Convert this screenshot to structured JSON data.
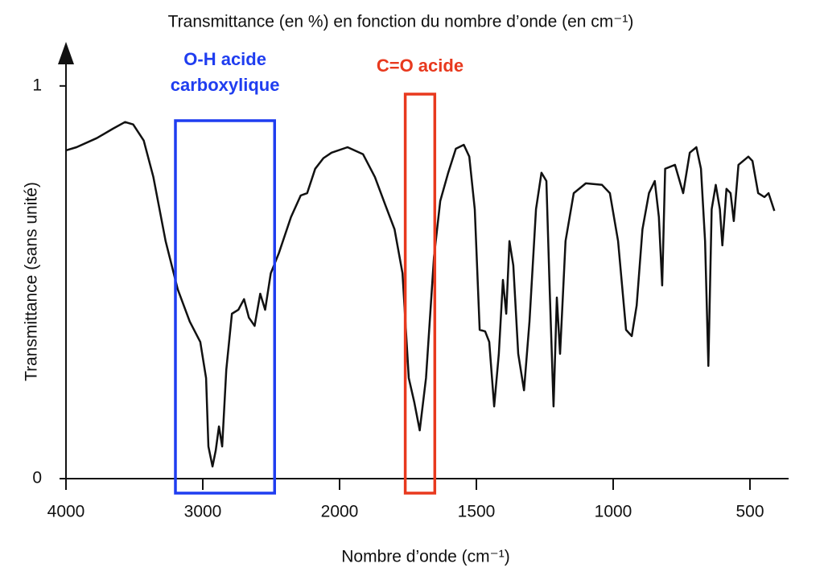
{
  "chart_data": {
    "type": "line",
    "title": "Transmittance (en %) en fonction du nombre d’onde (en cm⁻¹)",
    "x_label": "Nombre d’onde (cm⁻¹)",
    "y_label": "Transmittance (sans unité)",
    "color": "#111111",
    "xlim": [
      4000,
      400
    ],
    "xticks": [
      4000,
      3000,
      2000,
      1500,
      1000,
      500
    ],
    "ylim": [
      0,
      1.1
    ],
    "yticks": [
      0,
      1
    ],
    "x": [
      4000,
      3923,
      3775,
      3657,
      3568,
      3509,
      3432,
      3361,
      3272,
      3183,
      3095,
      3018,
      2976,
      2959,
      2929,
      2905,
      2882,
      2858,
      2828,
      2787,
      2740,
      2698,
      2663,
      2621,
      2580,
      2544,
      2503,
      2444,
      2355,
      2284,
      2237,
      2178,
      2118,
      2059,
      1971,
      1914,
      1871,
      1833,
      1799,
      1770,
      1747,
      1727,
      1707,
      1684,
      1655,
      1632,
      1603,
      1575,
      1546,
      1526,
      1506,
      1488,
      1468,
      1453,
      1435,
      1418,
      1403,
      1391,
      1379,
      1365,
      1347,
      1326,
      1306,
      1282,
      1262,
      1244,
      1232,
      1218,
      1206,
      1194,
      1174,
      1144,
      1100,
      1041,
      1012,
      982,
      953,
      932,
      914,
      893,
      869,
      848,
      833,
      821,
      810,
      774,
      744,
      720,
      696,
      679,
      664,
      652,
      640,
      625,
      610,
      601,
      586,
      571,
      559,
      542,
      506,
      491,
      470,
      447,
      432,
      411
    ],
    "values": [
      0.836,
      0.844,
      0.867,
      0.891,
      0.908,
      0.902,
      0.861,
      0.768,
      0.605,
      0.482,
      0.4,
      0.348,
      0.256,
      0.082,
      0.031,
      0.072,
      0.133,
      0.082,
      0.277,
      0.42,
      0.43,
      0.457,
      0.41,
      0.389,
      0.471,
      0.43,
      0.523,
      0.574,
      0.666,
      0.721,
      0.727,
      0.789,
      0.816,
      0.83,
      0.844,
      0.826,
      0.768,
      0.697,
      0.635,
      0.523,
      0.256,
      0.195,
      0.123,
      0.256,
      0.564,
      0.707,
      0.779,
      0.84,
      0.85,
      0.82,
      0.686,
      0.379,
      0.375,
      0.348,
      0.184,
      0.318,
      0.506,
      0.42,
      0.605,
      0.543,
      0.318,
      0.225,
      0.4,
      0.686,
      0.779,
      0.758,
      0.482,
      0.184,
      0.461,
      0.318,
      0.605,
      0.727,
      0.752,
      0.748,
      0.727,
      0.605,
      0.379,
      0.363,
      0.441,
      0.635,
      0.727,
      0.758,
      0.666,
      0.492,
      0.789,
      0.799,
      0.727,
      0.83,
      0.844,
      0.789,
      0.605,
      0.287,
      0.686,
      0.748,
      0.686,
      0.594,
      0.738,
      0.727,
      0.656,
      0.799,
      0.82,
      0.809,
      0.727,
      0.717,
      0.727,
      0.682
    ],
    "annotations": [
      {
        "lines": [
          "O-H acide",
          "carboxylique"
        ],
        "x_range": [
          3200,
          2475
        ],
        "color": "#1f3df0"
      },
      {
        "lines": [
          "C=O acide"
        ],
        "x_range": [
          1760,
          1652
        ],
        "color": "#e8391e"
      }
    ]
  }
}
